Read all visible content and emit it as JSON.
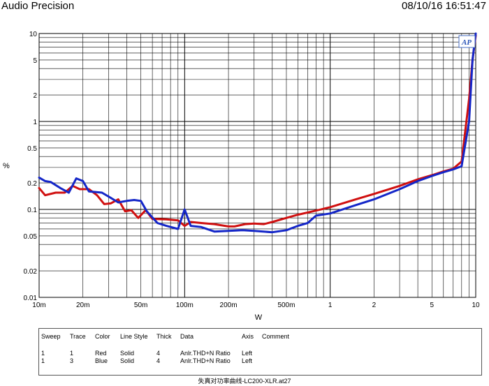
{
  "header": {
    "title": "Audio Precision",
    "datetime": "08/10/16 16:51:47"
  },
  "logo_text": "AP",
  "chart_data": {
    "type": "line",
    "xscale": "log",
    "yscale": "log",
    "xlim": [
      0.01,
      10
    ],
    "ylim": [
      0.01,
      10
    ],
    "xlabel": "W",
    "ylabel": "%",
    "x_ticks": [
      {
        "v": 0.01,
        "label": "10m"
      },
      {
        "v": 0.02,
        "label": "20m"
      },
      {
        "v": 0.05,
        "label": "50m"
      },
      {
        "v": 0.1,
        "label": "100m"
      },
      {
        "v": 0.2,
        "label": "200m"
      },
      {
        "v": 0.5,
        "label": "500m"
      },
      {
        "v": 1,
        "label": "1"
      },
      {
        "v": 2,
        "label": "2"
      },
      {
        "v": 5,
        "label": "5"
      },
      {
        "v": 10,
        "label": "10"
      }
    ],
    "y_ticks": [
      {
        "v": 10,
        "label": "10"
      },
      {
        "v": 5,
        "label": "5"
      },
      {
        "v": 2,
        "label": "2"
      },
      {
        "v": 1,
        "label": "1"
      },
      {
        "v": 0.5,
        "label": "0.5"
      },
      {
        "v": 0.2,
        "label": "0.2"
      },
      {
        "v": 0.1,
        "label": "0.1"
      },
      {
        "v": 0.05,
        "label": "0.05"
      },
      {
        "v": 0.02,
        "label": "0.02"
      },
      {
        "v": 0.01,
        "label": "0.01"
      }
    ],
    "series": [
      {
        "name": "Red",
        "color": "#d01010",
        "points": [
          [
            0.01,
            0.175
          ],
          [
            0.011,
            0.145
          ],
          [
            0.013,
            0.155
          ],
          [
            0.015,
            0.155
          ],
          [
            0.017,
            0.185
          ],
          [
            0.019,
            0.17
          ],
          [
            0.022,
            0.17
          ],
          [
            0.025,
            0.145
          ],
          [
            0.028,
            0.115
          ],
          [
            0.031,
            0.117
          ],
          [
            0.035,
            0.13
          ],
          [
            0.039,
            0.095
          ],
          [
            0.043,
            0.098
          ],
          [
            0.048,
            0.08
          ],
          [
            0.054,
            0.098
          ],
          [
            0.06,
            0.078
          ],
          [
            0.075,
            0.077
          ],
          [
            0.09,
            0.075
          ],
          [
            0.1,
            0.065
          ],
          [
            0.11,
            0.072
          ],
          [
            0.13,
            0.07
          ],
          [
            0.16,
            0.068
          ],
          [
            0.2,
            0.064
          ],
          [
            0.22,
            0.064
          ],
          [
            0.26,
            0.068
          ],
          [
            0.3,
            0.069
          ],
          [
            0.35,
            0.068
          ],
          [
            0.4,
            0.072
          ],
          [
            0.5,
            0.08
          ],
          [
            0.6,
            0.087
          ],
          [
            0.8,
            0.097
          ],
          [
            1,
            0.106
          ],
          [
            1.5,
            0.13
          ],
          [
            2,
            0.15
          ],
          [
            3,
            0.185
          ],
          [
            4,
            0.22
          ],
          [
            5,
            0.245
          ],
          [
            6,
            0.27
          ],
          [
            7,
            0.29
          ],
          [
            8,
            0.35
          ],
          [
            9,
            1.8
          ],
          [
            9.5,
            5.0
          ],
          [
            10,
            9.5
          ]
        ]
      },
      {
        "name": "Blue",
        "color": "#1426c8",
        "points": [
          [
            0.01,
            0.23
          ],
          [
            0.011,
            0.21
          ],
          [
            0.012,
            0.205
          ],
          [
            0.014,
            0.175
          ],
          [
            0.016,
            0.155
          ],
          [
            0.018,
            0.225
          ],
          [
            0.02,
            0.21
          ],
          [
            0.022,
            0.16
          ],
          [
            0.027,
            0.155
          ],
          [
            0.03,
            0.14
          ],
          [
            0.035,
            0.12
          ],
          [
            0.04,
            0.125
          ],
          [
            0.045,
            0.128
          ],
          [
            0.05,
            0.125
          ],
          [
            0.055,
            0.095
          ],
          [
            0.065,
            0.07
          ],
          [
            0.075,
            0.065
          ],
          [
            0.09,
            0.06
          ],
          [
            0.1,
            0.1
          ],
          [
            0.11,
            0.065
          ],
          [
            0.13,
            0.063
          ],
          [
            0.16,
            0.056
          ],
          [
            0.2,
            0.057
          ],
          [
            0.25,
            0.058
          ],
          [
            0.3,
            0.057
          ],
          [
            0.4,
            0.055
          ],
          [
            0.5,
            0.058
          ],
          [
            0.6,
            0.065
          ],
          [
            0.7,
            0.07
          ],
          [
            0.8,
            0.085
          ],
          [
            1,
            0.09
          ],
          [
            1.5,
            0.112
          ],
          [
            2,
            0.13
          ],
          [
            3,
            0.17
          ],
          [
            4,
            0.21
          ],
          [
            5,
            0.24
          ],
          [
            6,
            0.265
          ],
          [
            7,
            0.285
          ],
          [
            8,
            0.31
          ],
          [
            9,
            1.0
          ],
          [
            9.5,
            5.0
          ],
          [
            10,
            10
          ]
        ]
      }
    ]
  },
  "legend": {
    "headers": [
      "Sweep",
      "Trace",
      "Color",
      "Line Style",
      "Thick",
      "Data",
      "Axis",
      "Comment"
    ],
    "rows": [
      [
        "1",
        "1",
        "Red",
        "Solid",
        "4",
        "Anlr.THD+N Ratio",
        "Left",
        ""
      ],
      [
        "1",
        "3",
        "Blue",
        "Solid",
        "4",
        "Anlr.THD+N Ratio",
        "Left",
        ""
      ]
    ]
  },
  "footer": "失真对功率曲线-LC200-XLR.at27"
}
